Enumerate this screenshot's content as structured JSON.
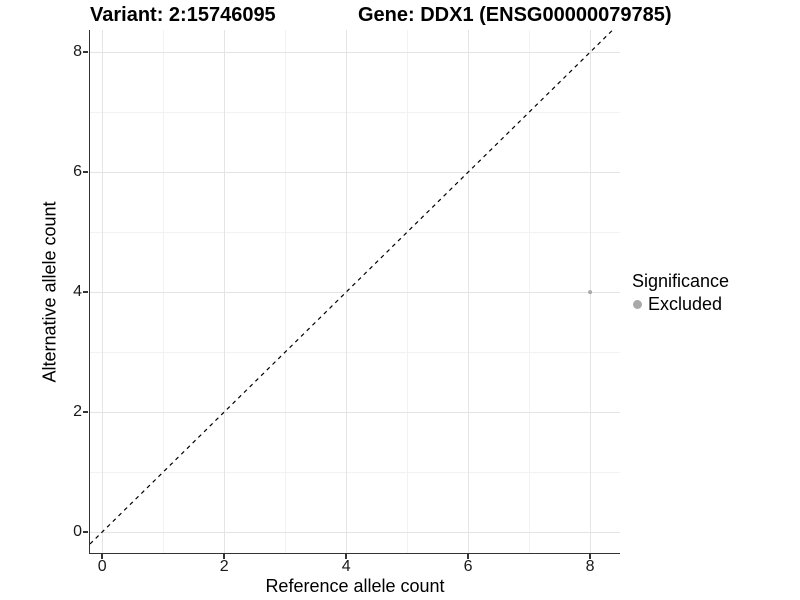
{
  "header": {
    "variant_title": "Variant: 2:15746095",
    "gene_title": "Gene: DDX1 (ENSG00000079785)"
  },
  "legend": {
    "title": "Significance",
    "items": [
      {
        "label": "Excluded",
        "color": "#a9a9a9"
      }
    ]
  },
  "chart_data": {
    "type": "scatter",
    "title": "Variant: 2:15746095  /  Gene: DDX1 (ENSG00000079785)",
    "xlabel": "Reference allele count",
    "ylabel": "Alternative allele count",
    "series": [
      {
        "name": "Excluded",
        "color": "#ababab",
        "points": [
          {
            "x": 8,
            "y": 4
          }
        ]
      }
    ],
    "x_ticks": [
      0,
      2,
      4,
      6,
      8
    ],
    "y_ticks": [
      0,
      2,
      4,
      6,
      8
    ],
    "x_minor": [
      1,
      3,
      5,
      7
    ],
    "y_minor": [
      1,
      3,
      5,
      7
    ],
    "xlim": [
      -0.2,
      8.49
    ],
    "ylim": [
      -0.35,
      8.37
    ],
    "reference_line": {
      "type": "y=x",
      "style": "dashed",
      "color": "#000000"
    },
    "grid": true,
    "legend_position": "right",
    "point_radius": 2
  }
}
